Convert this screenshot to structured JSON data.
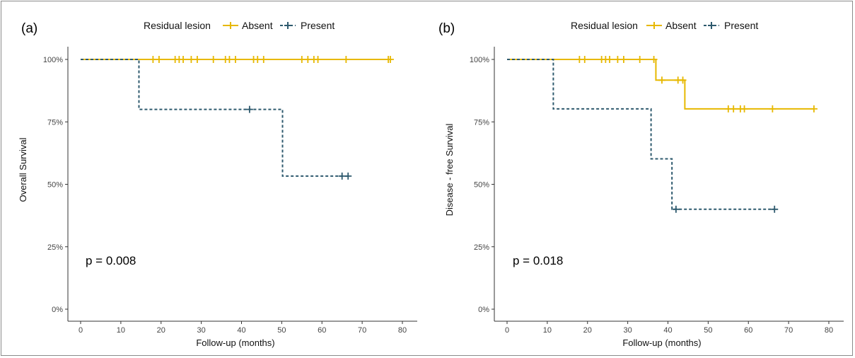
{
  "chart_data": [
    {
      "panel_label": "(a)",
      "type": "line",
      "step": true,
      "legend_title": "Residual lesion",
      "legend_position": "top",
      "xlabel": "Follow-up (months)",
      "ylabel": "Overall Survival",
      "xlim": [
        0,
        80
      ],
      "ylim": [
        0,
        100
      ],
      "x_ticks": [
        0,
        10,
        20,
        30,
        40,
        50,
        60,
        70,
        80
      ],
      "y_ticks": [
        0,
        25,
        50,
        75,
        100
      ],
      "y_tick_labels": [
        "0%",
        "25%",
        "50%",
        "75%",
        "100%"
      ],
      "grid": false,
      "annotation": "p = 0.008",
      "series": [
        {
          "name": "Absent",
          "color": "#E7B800",
          "dash": "solid",
          "steps": [
            [
              0,
              100
            ],
            [
              77,
              100
            ]
          ],
          "censored": [
            [
              18,
              100
            ],
            [
              19.5,
              100
            ],
            [
              23.5,
              100
            ],
            [
              24.5,
              100
            ],
            [
              25.5,
              100
            ],
            [
              27.5,
              100
            ],
            [
              29,
              100
            ],
            [
              33,
              100
            ],
            [
              36,
              100
            ],
            [
              37,
              100
            ],
            [
              38.5,
              100
            ],
            [
              43,
              100
            ],
            [
              44,
              100
            ],
            [
              45.5,
              100
            ],
            [
              55,
              100
            ],
            [
              56.5,
              100
            ],
            [
              58,
              100
            ],
            [
              59,
              100
            ],
            [
              66,
              100
            ],
            [
              76.5,
              100
            ],
            [
              77,
              100
            ]
          ]
        },
        {
          "name": "Present",
          "color": "#2E5A6E",
          "dash": "dashed",
          "steps": [
            [
              0,
              100
            ],
            [
              14.5,
              80
            ],
            [
              50.2,
              53.3
            ],
            [
              66.5,
              53.3
            ]
          ],
          "censored": [
            [
              42,
              80
            ],
            [
              65,
              53.3
            ],
            [
              66.5,
              53.3
            ]
          ]
        }
      ]
    },
    {
      "panel_label": "(b)",
      "type": "line",
      "step": true,
      "legend_title": "Residual lesion",
      "legend_position": "top",
      "xlabel": "Follow-up (months)",
      "ylabel": "Disease - free Survival",
      "xlim": [
        0,
        80
      ],
      "ylim": [
        0,
        100
      ],
      "x_ticks": [
        0,
        10,
        20,
        30,
        40,
        50,
        60,
        70,
        80
      ],
      "y_ticks": [
        0,
        25,
        50,
        75,
        100
      ],
      "y_tick_labels": [
        "0%",
        "25%",
        "50%",
        "75%",
        "100%"
      ],
      "grid": false,
      "annotation": "p = 0.018",
      "series": [
        {
          "name": "Absent",
          "color": "#E7B800",
          "dash": "solid",
          "steps": [
            [
              0,
              100
            ],
            [
              37,
              91.7
            ],
            [
              44.2,
              80.2
            ],
            [
              76.3,
              80.2
            ]
          ],
          "censored": [
            [
              18,
              100
            ],
            [
              19.3,
              100
            ],
            [
              23.5,
              100
            ],
            [
              24.5,
              100
            ],
            [
              25.5,
              100
            ],
            [
              27.5,
              100
            ],
            [
              29,
              100
            ],
            [
              33,
              100
            ],
            [
              36.5,
              100
            ],
            [
              38.5,
              91.7
            ],
            [
              42.5,
              91.7
            ],
            [
              43.7,
              91.7
            ],
            [
              55,
              80.2
            ],
            [
              56.3,
              80.2
            ],
            [
              58,
              80.2
            ],
            [
              59,
              80.2
            ],
            [
              66,
              80.2
            ],
            [
              76.3,
              80.2
            ]
          ]
        },
        {
          "name": "Present",
          "color": "#2E5A6E",
          "dash": "dashed",
          "steps": [
            [
              0,
              100
            ],
            [
              11.5,
              80.2
            ],
            [
              35.8,
              60.2
            ],
            [
              41,
              40
            ],
            [
              66.5,
              40
            ]
          ],
          "censored": [
            [
              42,
              40
            ],
            [
              66.5,
              40
            ]
          ]
        }
      ]
    }
  ]
}
